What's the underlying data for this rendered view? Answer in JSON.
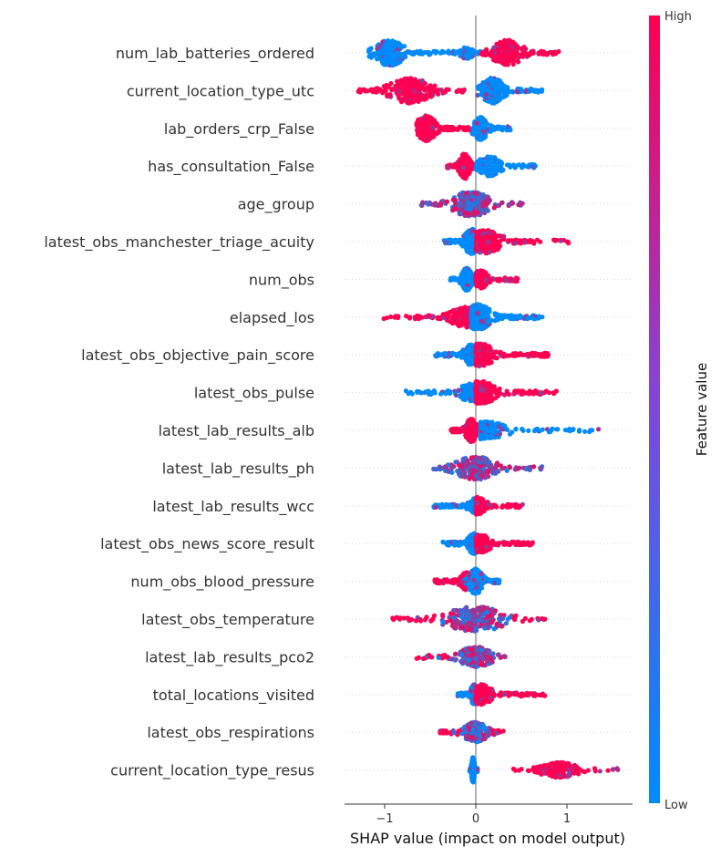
{
  "chart_data": {
    "type": "scatter",
    "subtype": "shap_beeswarm_summary",
    "xlabel": "SHAP value (impact on model output)",
    "xlim": [
      -1.45,
      1.72
    ],
    "xticks": [
      -1,
      0,
      1
    ],
    "xtick_labels": [
      "−1",
      "0",
      "1"
    ],
    "colorbar": {
      "title": "Feature value",
      "high_label": "High",
      "low_label": "Low",
      "low_color": "#008bfb",
      "high_color": "#ff0052"
    },
    "features": [
      {
        "name": "num_lab_batteries_ordered",
        "groups": [
          {
            "min": -1.18,
            "max": -0.3,
            "center": -0.95,
            "density": 1.0,
            "color": "low"
          },
          {
            "min": -0.3,
            "max": 0.1,
            "center": -0.1,
            "density": 0.45,
            "color": "low"
          },
          {
            "min": 0.05,
            "max": 0.92,
            "center": 0.35,
            "density": 1.0,
            "color": "high"
          }
        ]
      },
      {
        "name": "current_location_type_utc",
        "groups": [
          {
            "min": -1.32,
            "max": -0.12,
            "center": -0.72,
            "density": 1.0,
            "color": "high"
          },
          {
            "min": 0.02,
            "max": 0.73,
            "center": 0.18,
            "density": 1.0,
            "color": "low"
          }
        ]
      },
      {
        "name": "lab_orders_crp_False",
        "groups": [
          {
            "min": -0.65,
            "max": -0.05,
            "center": -0.55,
            "density": 1.0,
            "color": "high"
          },
          {
            "min": -0.05,
            "max": 0.38,
            "center": 0.05,
            "density": 0.9,
            "color": "low"
          }
        ]
      },
      {
        "name": "has_consultation_False",
        "groups": [
          {
            "min": -0.33,
            "max": -0.02,
            "center": -0.12,
            "density": 1.0,
            "color": "high"
          },
          {
            "min": 0.0,
            "max": 0.68,
            "center": 0.15,
            "density": 0.8,
            "color": "low"
          }
        ]
      },
      {
        "name": "age_group",
        "groups": [
          {
            "min": -0.6,
            "max": 0.54,
            "center": -0.05,
            "density": 1.0,
            "color": "mixed"
          }
        ]
      },
      {
        "name": "latest_obs_manchester_triage_acuity",
        "groups": [
          {
            "min": -0.35,
            "max": 0.05,
            "center": -0.05,
            "density": 1.0,
            "color": "low"
          },
          {
            "min": 0.0,
            "max": 1.02,
            "center": 0.1,
            "density": 0.9,
            "color": "high"
          }
        ]
      },
      {
        "name": "num_obs",
        "groups": [
          {
            "min": -0.28,
            "max": 0.02,
            "center": -0.1,
            "density": 0.9,
            "color": "low"
          },
          {
            "min": 0.0,
            "max": 0.46,
            "center": 0.05,
            "density": 0.7,
            "color": "high"
          }
        ]
      },
      {
        "name": "elapsed_los",
        "groups": [
          {
            "min": -1.02,
            "max": -0.05,
            "center": -0.1,
            "density": 0.8,
            "color": "high"
          },
          {
            "min": -0.05,
            "max": 0.73,
            "center": 0.02,
            "density": 1.0,
            "color": "low"
          }
        ]
      },
      {
        "name": "latest_obs_objective_pain_score",
        "groups": [
          {
            "min": -0.45,
            "max": 0.0,
            "center": -0.05,
            "density": 0.8,
            "color": "low"
          },
          {
            "min": 0.0,
            "max": 0.8,
            "center": 0.05,
            "density": 0.9,
            "color": "high"
          }
        ]
      },
      {
        "name": "latest_obs_pulse",
        "groups": [
          {
            "min": -0.78,
            "max": 0.0,
            "center": -0.05,
            "density": 0.7,
            "color": "low"
          },
          {
            "min": 0.0,
            "max": 0.9,
            "center": 0.05,
            "density": 0.9,
            "color": "high"
          }
        ]
      },
      {
        "name": "latest_lab_results_alb",
        "groups": [
          {
            "min": -0.28,
            "max": 0.05,
            "center": -0.05,
            "density": 0.9,
            "color": "high"
          },
          {
            "min": 0.05,
            "max": 1.36,
            "center": 0.1,
            "density": 0.7,
            "color": "low"
          }
        ]
      },
      {
        "name": "latest_lab_results_ph",
        "groups": [
          {
            "min": -0.47,
            "max": 0.76,
            "center": 0.0,
            "density": 0.9,
            "color": "mixed"
          }
        ]
      },
      {
        "name": "latest_lab_results_wcc",
        "groups": [
          {
            "min": -0.47,
            "max": 0.0,
            "center": 0.0,
            "density": 0.6,
            "color": "low"
          },
          {
            "min": 0.0,
            "max": 0.52,
            "center": 0.02,
            "density": 0.7,
            "color": "high"
          }
        ]
      },
      {
        "name": "latest_obs_news_score_result",
        "groups": [
          {
            "min": -0.37,
            "max": 0.0,
            "center": -0.02,
            "density": 0.8,
            "color": "low"
          },
          {
            "min": 0.0,
            "max": 0.63,
            "center": 0.05,
            "density": 0.7,
            "color": "high"
          }
        ]
      },
      {
        "name": "num_obs_blood_pressure",
        "groups": [
          {
            "min": -0.45,
            "max": -0.05,
            "center": -0.1,
            "density": 0.7,
            "color": "high"
          },
          {
            "min": -0.15,
            "max": 0.27,
            "center": 0.0,
            "density": 1.0,
            "color": "low"
          }
        ]
      },
      {
        "name": "latest_obs_temperature",
        "groups": [
          {
            "min": -0.92,
            "max": 0.77,
            "center": 0.0,
            "density": 1.0,
            "color": "mixed_hi_tails"
          }
        ]
      },
      {
        "name": "latest_lab_results_pco2",
        "groups": [
          {
            "min": -0.65,
            "max": 0.33,
            "center": 0.0,
            "density": 0.8,
            "color": "mixed_hi_tails"
          }
        ]
      },
      {
        "name": "total_locations_visited",
        "groups": [
          {
            "min": -0.2,
            "max": 0.0,
            "center": -0.02,
            "density": 0.8,
            "color": "low"
          },
          {
            "min": 0.0,
            "max": 0.77,
            "center": 0.05,
            "density": 0.8,
            "color": "high"
          }
        ]
      },
      {
        "name": "latest_obs_respirations",
        "groups": [
          {
            "min": -0.4,
            "max": 0.32,
            "center": 0.0,
            "density": 0.8,
            "color": "mixed_hi_tails"
          }
        ]
      },
      {
        "name": "current_location_type_resus",
        "groups": [
          {
            "min": -0.07,
            "max": 0.02,
            "center": -0.03,
            "density": 1.0,
            "color": "low"
          },
          {
            "min": 0.36,
            "max": 1.58,
            "center": 0.9,
            "density": 0.6,
            "color": "high"
          }
        ]
      }
    ]
  }
}
